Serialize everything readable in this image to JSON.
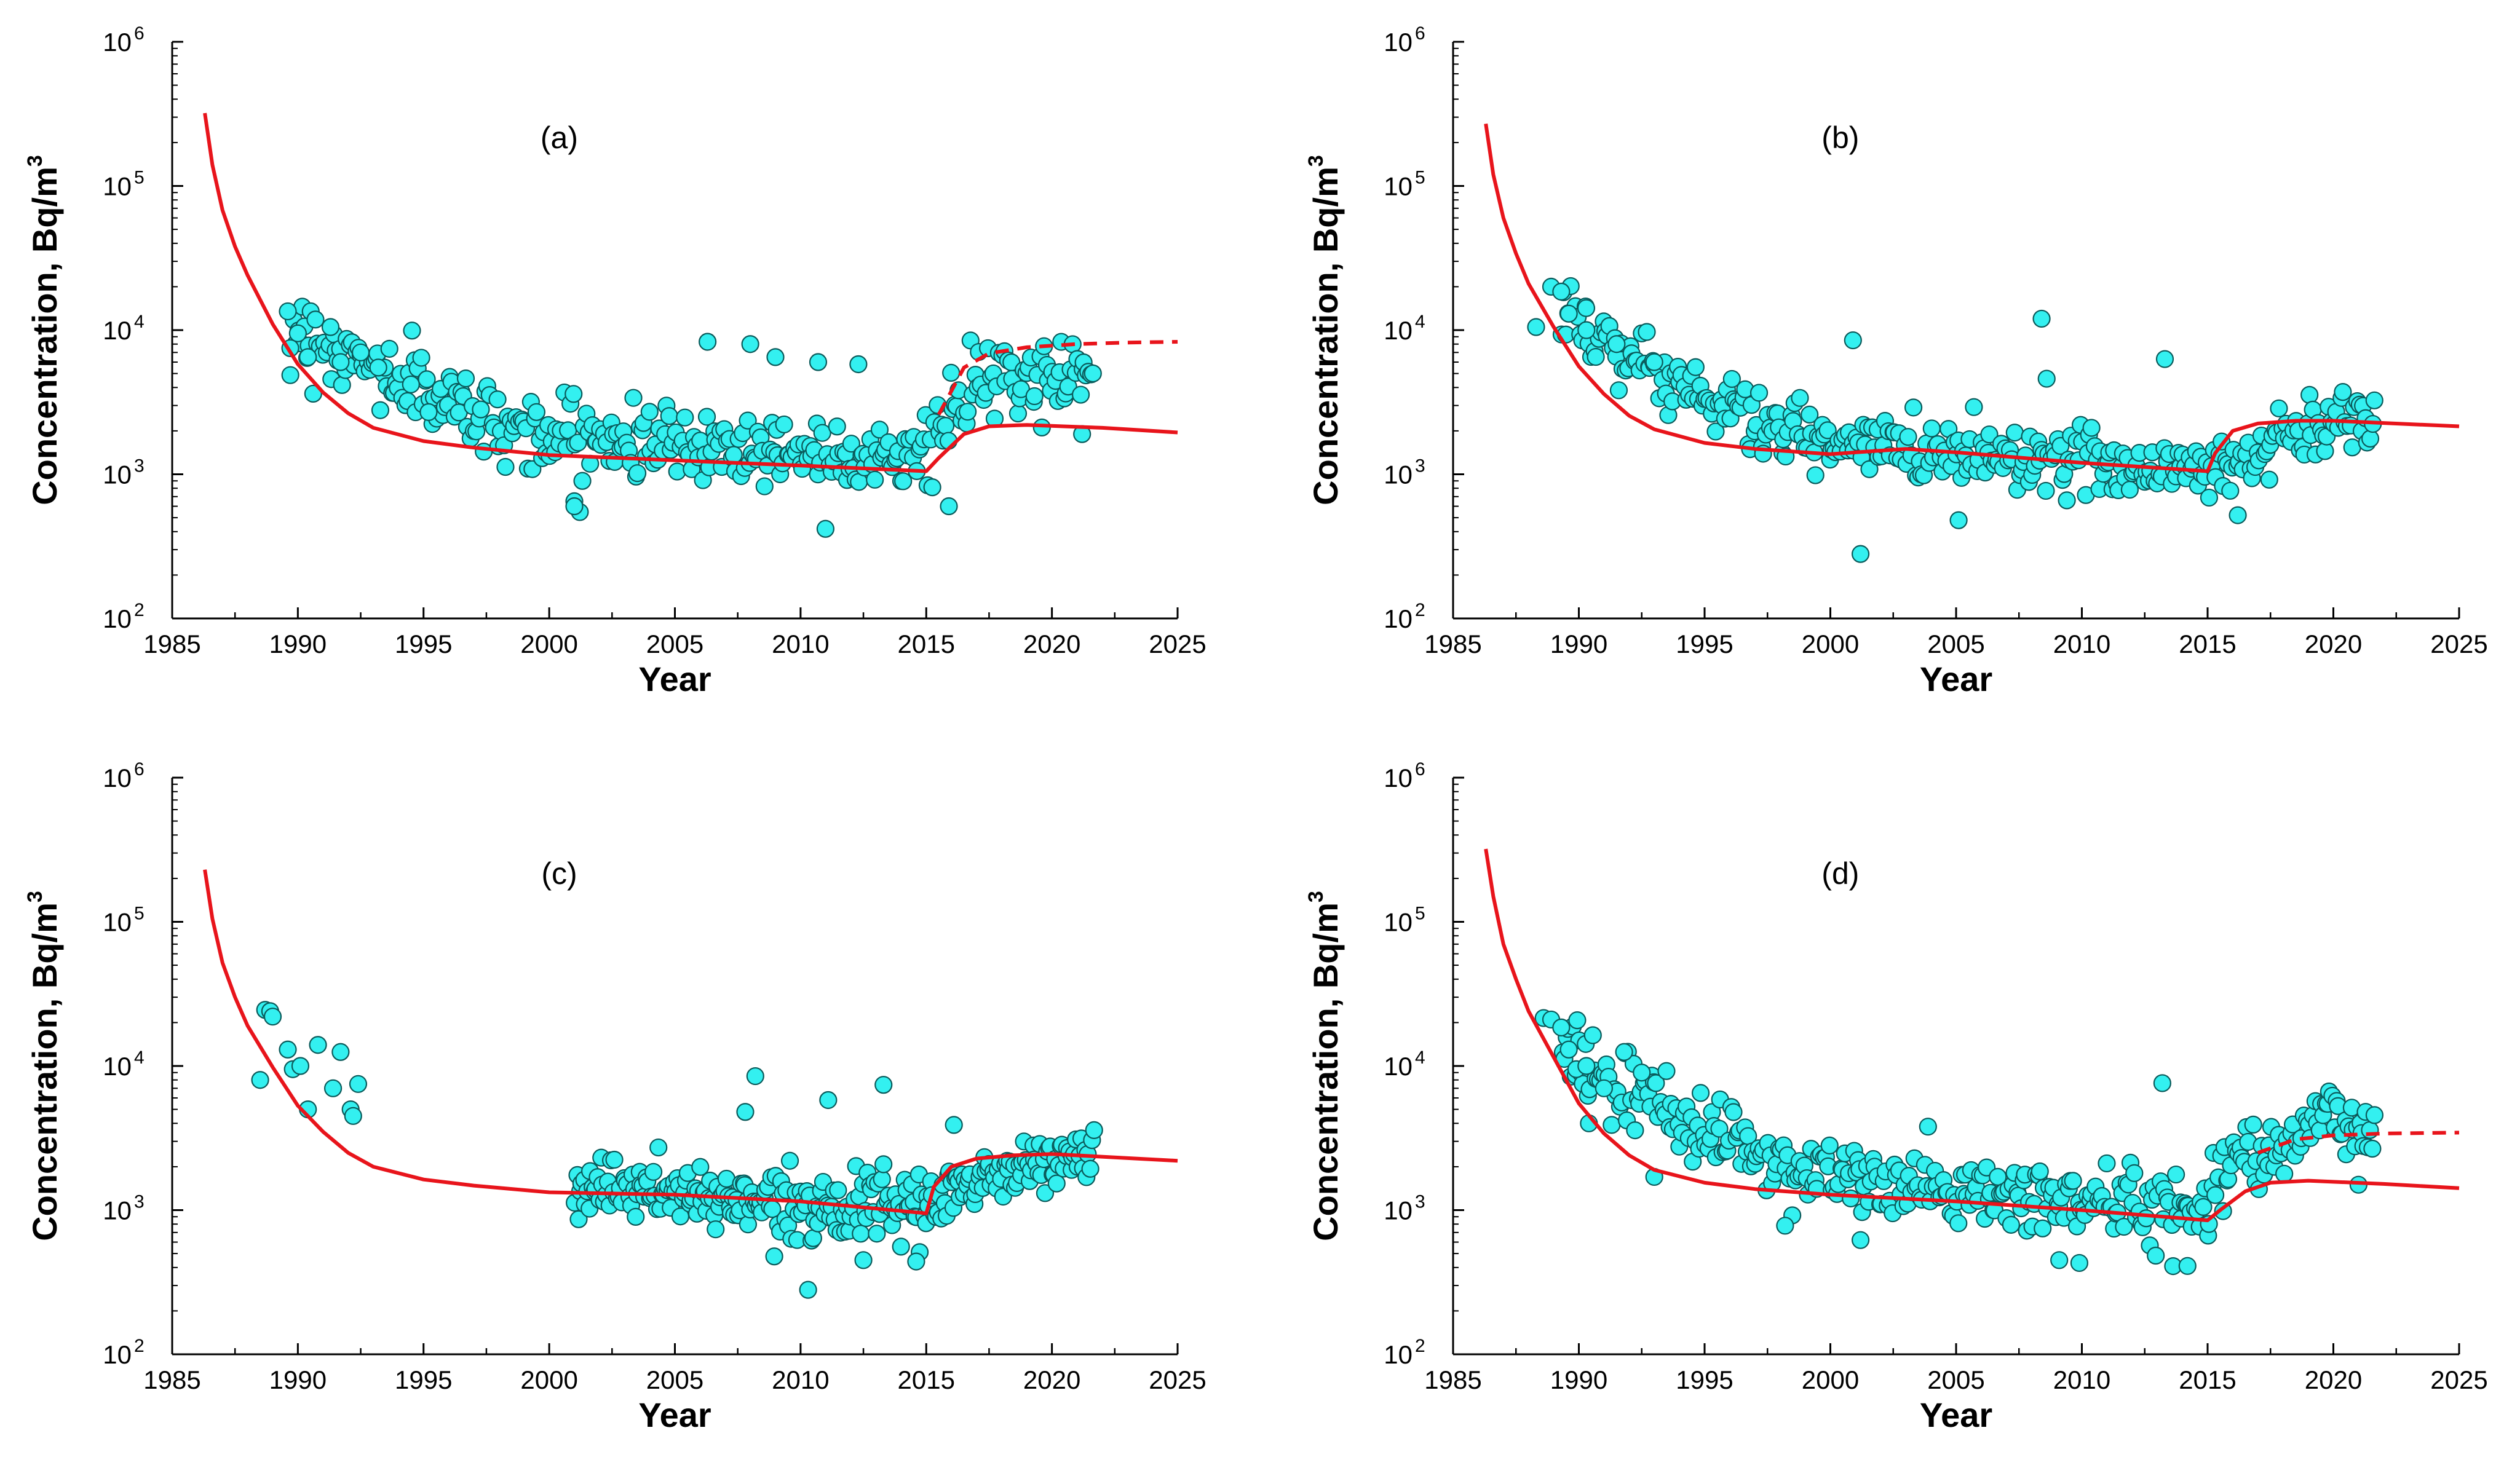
{
  "colors": {
    "model_line": "#e8141b",
    "point_fill": "#33f0f0",
    "point_stroke": "#0a5a5a",
    "axis": "#000000"
  },
  "axis_text": {
    "xlabel": "Year",
    "ylabel_main": "Concentration, Bq/m",
    "ylabel_sup": "3",
    "y_base": "10"
  },
  "chart_data": [
    {
      "type": "scatter",
      "panel": "(a)",
      "title": "(a)",
      "xlabel": "Year",
      "ylabel": "Concentration, Bq/m3",
      "yscale": "log",
      "xlim": [
        1985,
        2025
      ],
      "ylim": [
        100,
        1000000
      ],
      "xticks": [
        1985,
        1990,
        1995,
        2000,
        2005,
        2010,
        2015,
        2020,
        2025
      ],
      "yticks": [
        2,
        3,
        4,
        5,
        6
      ],
      "model_line": {
        "x": [
          1986.3,
          1986.6,
          1987,
          1987.5,
          1988,
          1989,
          1990,
          1991,
          1992,
          1993,
          1995,
          1997,
          2000,
          2005,
          2010,
          2015,
          2015.5,
          2016.5,
          2017.5,
          2019,
          2022,
          2025
        ],
        "y": [
          320000,
          140000,
          68000,
          38000,
          24000,
          11000,
          5800,
          3700,
          2650,
          2100,
          1700,
          1530,
          1360,
          1250,
          1150,
          1050,
          1300,
          1900,
          2150,
          2200,
          2100,
          1950
        ]
      },
      "model_dashed": {
        "x": [
          2015.5,
          2016.5,
          2017.5,
          2019,
          2021,
          2023,
          2025
        ],
        "y": [
          2600,
          5500,
          6900,
          7600,
          8000,
          8200,
          8300
        ]
      },
      "observed": {
        "early_points": [
          [
            1989.6,
            13500
          ],
          [
            1989.7,
            7500
          ],
          [
            1990,
            9500
          ],
          [
            1990.4,
            6500
          ],
          [
            1991.3,
            10500
          ],
          [
            1991.7,
            6000
          ],
          [
            1992.5,
            7000
          ],
          [
            1993.2,
            5500
          ],
          [
            1994.5,
            4200
          ],
          [
            1995.2,
            2700
          ]
        ],
        "trend": [
          [
            1989.7,
            11000
          ],
          [
            1992,
            6500
          ],
          [
            1995,
            3800
          ],
          [
            1998,
            2300
          ],
          [
            2000,
            1850
          ],
          [
            2005,
            1650
          ],
          [
            2010,
            1450
          ],
          [
            2015,
            1400
          ],
          [
            2016,
            2500
          ],
          [
            2017,
            4200
          ],
          [
            2019,
            4500
          ],
          [
            2021.7,
            5300
          ]
        ],
        "scatter_factor": 1.7,
        "count": 360,
        "outliers": [
          [
            2001,
            650
          ],
          [
            2001,
            600
          ],
          [
            2006.3,
            8300
          ],
          [
            2008,
            8000
          ],
          [
            2009,
            6500
          ],
          [
            2010.7,
            6000
          ],
          [
            2012.3,
            5800
          ],
          [
            2015.9,
            600
          ],
          [
            2021.2,
            1900
          ]
        ]
      }
    },
    {
      "type": "scatter",
      "panel": "(b)",
      "title": "(b)",
      "xlabel": "Year",
      "ylabel": "Concentration, Bq/m3",
      "yscale": "log",
      "xlim": [
        1985,
        2025
      ],
      "ylim": [
        100,
        1000000
      ],
      "xticks": [
        1985,
        1990,
        1995,
        2000,
        2005,
        2010,
        2015,
        2020,
        2025
      ],
      "yticks": [
        2,
        3,
        4,
        5,
        6
      ],
      "model_line": {
        "x": [
          1986.3,
          1986.6,
          1987,
          1987.5,
          1988,
          1989,
          1990,
          1991,
          1992,
          1993,
          1995,
          1997,
          2000,
          2003,
          2005,
          2010,
          2015,
          2015.3,
          2016,
          2017,
          2018.5,
          2020,
          2025
        ],
        "y": [
          270000,
          120000,
          60000,
          34000,
          21000,
          10500,
          5600,
          3600,
          2550,
          2050,
          1650,
          1500,
          1380,
          1500,
          1420,
          1200,
          1050,
          1400,
          2000,
          2250,
          2350,
          2350,
          2150
        ]
      },
      "observed": {
        "early_points": [
          [
            1988.3,
            10500
          ],
          [
            1988.9,
            20000
          ],
          [
            1989.3,
            18500
          ],
          [
            1989.6,
            13000
          ],
          [
            1990.3,
            10000
          ],
          [
            1991.5,
            8000
          ],
          [
            1993,
            6000
          ]
        ],
        "trend": [
          [
            1989.3,
            15000
          ],
          [
            1992,
            6500
          ],
          [
            1995,
            3500
          ],
          [
            1998,
            2000
          ],
          [
            2000,
            1600
          ],
          [
            2005,
            1450
          ],
          [
            2010,
            1250
          ],
          [
            2015,
            1050
          ],
          [
            2016.5,
            1300
          ],
          [
            2018.5,
            2000
          ],
          [
            2021.7,
            2700
          ]
        ],
        "scatter_factor": 1.6,
        "count": 360,
        "outliers": [
          [
            2000.9,
            8500
          ],
          [
            2001.2,
            280
          ],
          [
            2005.1,
            480
          ],
          [
            2008.4,
            12000
          ],
          [
            2008.6,
            4600
          ],
          [
            2013.3,
            6300
          ],
          [
            2016.2,
            520
          ]
        ]
      }
    },
    {
      "type": "scatter",
      "panel": "(c)",
      "title": "(c)",
      "xlabel": "Year",
      "ylabel": "Concentration, Bq/m3",
      "yscale": "log",
      "xlim": [
        1985,
        2025
      ],
      "ylim": [
        100,
        1000000
      ],
      "xticks": [
        1985,
        1990,
        1995,
        2000,
        2005,
        2010,
        2015,
        2020,
        2025
      ],
      "yticks": [
        2,
        3,
        4,
        5,
        6
      ],
      "model_line": {
        "x": [
          1986.3,
          1986.6,
          1987,
          1987.5,
          1988,
          1989,
          1990,
          1991,
          1992,
          1993,
          1995,
          1997,
          2000,
          2005,
          2010,
          2015,
          2015.3,
          2016,
          2017,
          2018.5,
          2020,
          2025
        ],
        "y": [
          230000,
          105000,
          52000,
          30000,
          19000,
          9800,
          5300,
          3500,
          2500,
          2000,
          1630,
          1480,
          1330,
          1280,
          1150,
          950,
          1450,
          2000,
          2280,
          2400,
          2450,
          2200
        ]
      },
      "observed": {
        "early_points": [
          [
            1988.5,
            8000
          ],
          [
            1988.7,
            24500
          ],
          [
            1988.9,
            24000
          ],
          [
            1989,
            22000
          ],
          [
            1989.6,
            13000
          ],
          [
            1989.8,
            9500
          ],
          [
            1990.1,
            10000
          ],
          [
            1990.4,
            5000
          ],
          [
            1990.8,
            14000
          ],
          [
            1991.4,
            7000
          ],
          [
            1991.7,
            12500
          ],
          [
            1992.1,
            5000
          ],
          [
            1992.4,
            7500
          ],
          [
            1992.2,
            4500
          ]
        ],
        "trend": [
          [
            2001,
            1500
          ],
          [
            2005,
            1300
          ],
          [
            2010,
            1100
          ],
          [
            2015,
            1000
          ],
          [
            2016.5,
            1500
          ],
          [
            2018.5,
            1900
          ],
          [
            2021.7,
            2500
          ]
        ],
        "scatter_factor": 1.5,
        "count": 300,
        "outliers": [
          [
            2008.2,
            8500
          ],
          [
            2007.8,
            4800
          ],
          [
            2010.3,
            280
          ],
          [
            2011.1,
            5800
          ],
          [
            2013.3,
            7400
          ],
          [
            2016.1,
            3900
          ],
          [
            2012.5,
            450
          ],
          [
            2014.6,
            440
          ]
        ]
      }
    },
    {
      "type": "scatter",
      "panel": "(d)",
      "title": "(d)",
      "xlabel": "Year",
      "ylabel": "Concentration, Bq/m3",
      "yscale": "log",
      "xlim": [
        1985,
        2025
      ],
      "ylim": [
        100,
        1000000
      ],
      "xticks": [
        1985,
        1990,
        1995,
        2000,
        2005,
        2010,
        2015,
        2020,
        2025
      ],
      "yticks": [
        2,
        3,
        4,
        5,
        6
      ],
      "model_line": {
        "x": [
          1986.3,
          1986.6,
          1987,
          1987.5,
          1988,
          1989,
          1990,
          1991,
          1992,
          1993,
          1995,
          1997,
          2000,
          2005,
          2010,
          2015,
          2015.5,
          2016.5,
          2017.5,
          2019,
          2022,
          2025
        ],
        "y": [
          320000,
          150000,
          70000,
          40000,
          24000,
          11500,
          5500,
          3400,
          2400,
          1900,
          1550,
          1400,
          1280,
          1150,
          1000,
          850,
          1000,
          1350,
          1550,
          1600,
          1520,
          1420
        ]
      },
      "model_dashed": {
        "x": [
          2017,
          2018.5,
          2020,
          2022,
          2025
        ],
        "y": [
          2500,
          3100,
          3300,
          3400,
          3450
        ]
      },
      "observed": {
        "early_points": [
          [
            1988.6,
            21500
          ],
          [
            1988.9,
            21000
          ],
          [
            1989.3,
            18500
          ],
          [
            1989.6,
            13000
          ],
          [
            1989.9,
            9500
          ],
          [
            1990.3,
            10000
          ],
          [
            1990.4,
            4000
          ],
          [
            1991,
            7000
          ],
          [
            1991.8,
            12500
          ],
          [
            1992.5,
            9000
          ],
          [
            1993,
            1700
          ]
        ],
        "trend": [
          [
            1989.3,
            14000
          ],
          [
            1992,
            6000
          ],
          [
            1995,
            3800
          ],
          [
            1998,
            2100
          ],
          [
            2000,
            1700
          ],
          [
            2005,
            1300
          ],
          [
            2010,
            1150
          ],
          [
            2014.5,
            1000
          ],
          [
            2016,
            2300
          ],
          [
            2018,
            3200
          ],
          [
            2020,
            4200
          ],
          [
            2021.7,
            3500
          ]
        ],
        "scatter_factor": 1.7,
        "count": 380,
        "outliers": [
          [
            2009.1,
            450
          ],
          [
            2009.9,
            430
          ],
          [
            2013.2,
            7600
          ],
          [
            2014.2,
            410
          ],
          [
            2021,
            1500
          ],
          [
            2001.2,
            620
          ],
          [
            1998.2,
            780
          ]
        ]
      }
    }
  ]
}
